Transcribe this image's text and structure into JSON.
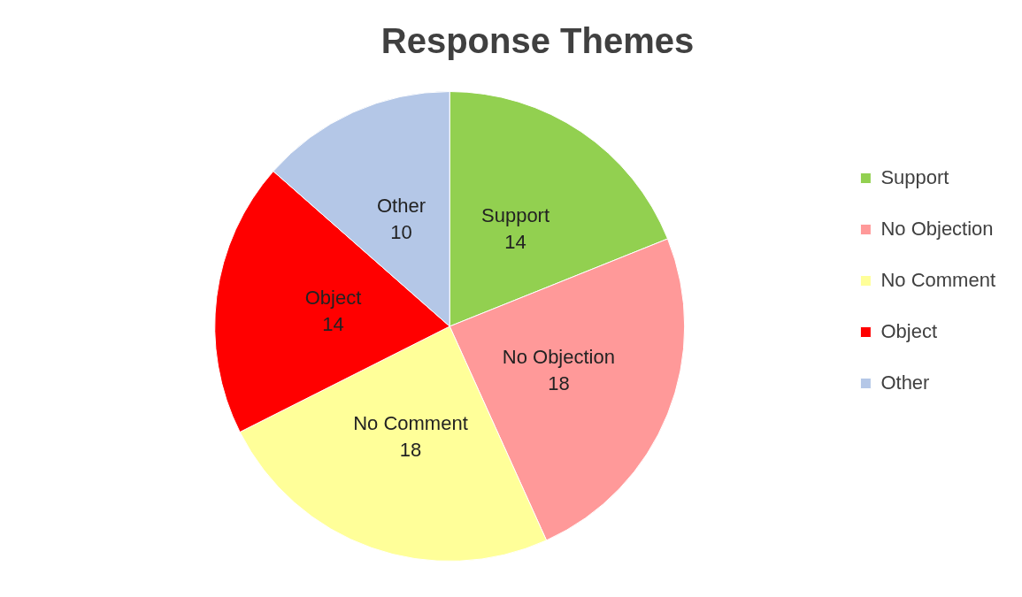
{
  "chart_data": {
    "type": "pie",
    "title": "Response Themes",
    "categories": [
      "Support",
      "No Objection",
      "No Comment",
      "Object",
      "Other"
    ],
    "values": [
      14,
      18,
      18,
      14,
      10
    ],
    "colors": [
      "#92d050",
      "#ff9999",
      "#ffff99",
      "#ff0000",
      "#b4c7e7"
    ],
    "data_labels": true,
    "legend": "right"
  }
}
